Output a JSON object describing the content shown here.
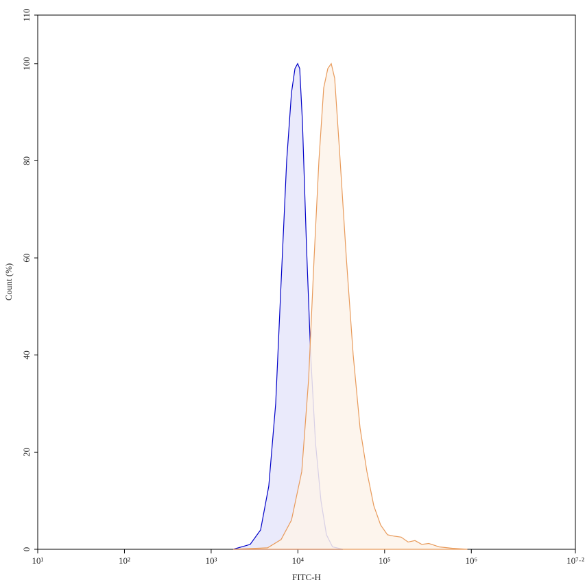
{
  "chart_data": {
    "type": "area",
    "x_label": "FITC-H",
    "y_label": "Count (%)",
    "log_x": true,
    "xlim": [
      10,
      15848931.92
    ],
    "xticks": [
      {
        "value": 10,
        "label": "10¹"
      },
      {
        "value": 100,
        "label": "10²"
      },
      {
        "value": 1000,
        "label": "10³"
      },
      {
        "value": 10000,
        "label": "10⁴"
      },
      {
        "value": 100000,
        "label": "10⁵"
      },
      {
        "value": 1000000,
        "label": "10⁶"
      },
      {
        "value": 15848931.92,
        "label": "10⁷·²"
      }
    ],
    "ylim": [
      0,
      110
    ],
    "yticks": [
      0,
      20,
      40,
      60,
      80,
      100,
      110
    ],
    "series": [
      {
        "color": "#0000c8",
        "fill": "#e6e6fa",
        "x": [
          1795,
          2820,
          3720,
          4620,
          5550,
          6410,
          7430,
          8440,
          9250,
          9940,
          10490,
          11290,
          12600,
          14030,
          15950,
          18450,
          21340,
          25120,
          33040
        ],
        "values": [
          0,
          1,
          4,
          13,
          30,
          55,
          80,
          94,
          99,
          100,
          99,
          88,
          62,
          40,
          22,
          10,
          3,
          0.5,
          0
        ]
      },
      {
        "color": "#e89a5a",
        "fill": "#fdf3ea",
        "x": [
          1795,
          4470,
          6410,
          8440,
          11090,
          13300,
          15380,
          17470,
          19860,
          22150,
          24270,
          26550,
          30200,
          36230,
          43450,
          52120,
          62520,
          74990,
          89950,
          107900,
          129400,
          155300,
          186300,
          223900,
          268800,
          322800,
          427000,
          610000,
          900000
        ],
        "values": [
          0,
          0.3,
          2,
          6,
          16,
          35,
          60,
          80,
          95,
          99,
          100,
          97,
          82,
          60,
          40,
          25,
          16,
          9,
          5,
          3,
          2.7,
          2.5,
          1.5,
          1.8,
          1,
          1.2,
          0.5,
          0.2,
          0
        ]
      }
    ]
  }
}
